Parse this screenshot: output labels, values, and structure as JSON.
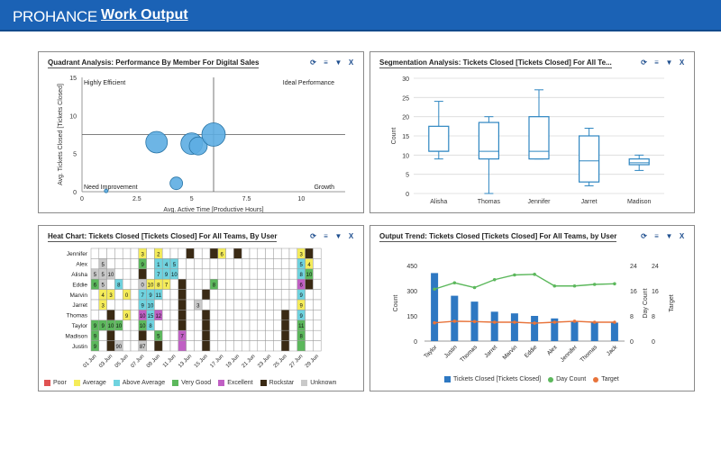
{
  "header": {
    "logo": "PROHANCE",
    "title": "Work Output"
  },
  "colors": {
    "header": "#1b62b5",
    "bubble": "#5dade2",
    "box": "#2e86c1",
    "bar": "#2e78c2",
    "green": "#5cb85c",
    "orange": "#e8733a"
  },
  "panels": {
    "quadrant": {
      "title": "Quadrant Analysis: Performance By Member For Digital Sales"
    },
    "segmentation": {
      "title": "Segmentation Analysis: Tickets Closed [Tickets Closed] For All Te..."
    },
    "heat": {
      "title": "Heat Chart: Tickets Closed [Tickets Closed] For All Teams, By User"
    },
    "trend": {
      "title": "Output Trend: Tickets Closed [Tickets Closed] For All Teams, by User"
    }
  },
  "controls": {
    "refresh": "⟳",
    "menu": "≡",
    "filter": "▼",
    "close": "X"
  },
  "chart_data": [
    {
      "type": "scatter",
      "title": "Quadrant Analysis: Performance By Member For Digital Sales",
      "xlabel": "Avg. Active Time [Productive Hours]",
      "ylabel": "Avg. Tickets Closed [Tickets Closed]",
      "xlim": [
        0,
        12
      ],
      "ylim": [
        0,
        15
      ],
      "xticks": [
        "0",
        "2.5",
        "5",
        "7.5",
        "10"
      ],
      "xtick_values": [
        0,
        2.5,
        5,
        7.5,
        10
      ],
      "yticks": [
        "0",
        "5",
        "10",
        "15"
      ],
      "ytick_values": [
        0,
        5,
        10,
        15
      ],
      "divider": {
        "x": 6,
        "y": 7.5
      },
      "quadrants": {
        "tl": "Highly Efficient",
        "tr": "Ideal Performance",
        "bl": "Need Improvement",
        "br": "Growth"
      },
      "points": [
        {
          "x": 3.4,
          "y": 6.5,
          "size": 12
        },
        {
          "x": 5.0,
          "y": 6.3,
          "size": 12
        },
        {
          "x": 5.3,
          "y": 6.0,
          "size": 10
        },
        {
          "x": 6.0,
          "y": 7.5,
          "size": 13
        },
        {
          "x": 4.3,
          "y": 1.1,
          "size": 7
        },
        {
          "x": 1.1,
          "y": 0.1,
          "size": 2
        }
      ]
    },
    {
      "type": "box",
      "title": "Segmentation Analysis: Tickets Closed [Tickets Closed] For All Te...",
      "ylabel": "Count",
      "ylim": [
        0,
        30
      ],
      "yticks": [
        "0",
        "5",
        "10",
        "15",
        "20",
        "25",
        "30"
      ],
      "ytick_values": [
        0,
        5,
        10,
        15,
        20,
        25,
        30
      ],
      "categories": [
        "Alisha",
        "Thomas",
        "Jennifer",
        "Jarret",
        "Madison"
      ],
      "boxes": [
        {
          "min": 9,
          "q1": 11,
          "median": 11,
          "q3": 17.5,
          "max": 24
        },
        {
          "min": 0,
          "q1": 9,
          "median": 11,
          "q3": 18.5,
          "max": 20
        },
        {
          "min": 9,
          "q1": 9,
          "median": 11,
          "q3": 20,
          "max": 27
        },
        {
          "min": 2,
          "q1": 3,
          "median": 8.5,
          "q3": 15,
          "max": 17
        },
        {
          "min": 6,
          "q1": 7.5,
          "median": 8,
          "q3": 9,
          "max": 10
        }
      ]
    },
    {
      "type": "heatmap",
      "title": "Heat Chart: Tickets Closed [Tickets Closed] For All Teams, By User",
      "rows": [
        "Jennifer",
        "Alex",
        "Alisha",
        "Eddie",
        "Marvin",
        "Jarret",
        "Thomas",
        "Taylor",
        "Madison",
        "Justin"
      ],
      "xticks": [
        "01 Jun",
        "03 Jun",
        "05 Jun",
        "07 Jun",
        "09 Jun",
        "11 Jun",
        "13 Jun",
        "15 Jun",
        "17 Jun",
        "19 Jun",
        "21 Jun",
        "23 Jun",
        "25 Jun",
        "27 Jun",
        "29 Jun"
      ],
      "palette": {
        "Poor": "#e05252",
        "Average": "#f5ec5a",
        "Above Average": "#6fd3df",
        "Very Good": "#5cb85c",
        "Excellent": "#c05fc4",
        "Rockstar": "#3a2a14",
        "Unknown": "#c9c9c9",
        "Empty": "#ffffff"
      },
      "legend": [
        "Poor",
        "Average",
        "Above Average",
        "Very Good",
        "Excellent",
        "Rockstar",
        "Unknown"
      ],
      "cells": [
        [
          ".",
          ".",
          ".",
          ".",
          ".",
          ".",
          "Y:3",
          ".",
          "Y:2",
          ".",
          ".",
          ".",
          "R",
          ".",
          ".",
          "R",
          "Y:6",
          ".",
          "R",
          ".",
          ".",
          ".",
          ".",
          ".",
          ".",
          ".",
          "Y:3",
          "R",
          "."
        ],
        [
          ".",
          "U:5",
          ".",
          ".",
          ".",
          ".",
          "G:9",
          ".",
          "B:1",
          "B:4",
          "B:5",
          ".",
          ".",
          ".",
          ".",
          ".",
          ".",
          ".",
          ".",
          ".",
          ".",
          ".",
          ".",
          ".",
          ".",
          ".",
          "B:5",
          "Y:4",
          "."
        ],
        [
          "U:5",
          "U:5",
          "U:10",
          ".",
          ".",
          ".",
          "R",
          ".",
          "B:7",
          "B:9",
          "B:10",
          ".",
          ".",
          ".",
          ".",
          ".",
          ".",
          ".",
          ".",
          ".",
          ".",
          ".",
          ".",
          ".",
          ".",
          ".",
          "B:8",
          "G:10",
          "."
        ],
        [
          "G:6",
          "U:5",
          ".",
          "B:8",
          ".",
          ".",
          "U:0",
          "Y:10",
          "Y:8",
          "Y:7",
          ".",
          "R",
          ".",
          ".",
          ".",
          "G:8",
          ".",
          ".",
          ".",
          ".",
          ".",
          ".",
          ".",
          ".",
          ".",
          ".",
          "P:6",
          "R",
          "."
        ],
        [
          ".",
          "Y:4",
          "Y:3",
          ".",
          "Y:0",
          ".",
          "B:7",
          "B:9",
          "B:11",
          ".",
          ".",
          "R",
          ".",
          ".",
          "R",
          ".",
          ".",
          ".",
          ".",
          ".",
          ".",
          ".",
          ".",
          ".",
          ".",
          ".",
          "B:9",
          ".",
          "."
        ],
        [
          ".",
          "Y:3",
          ".",
          ".",
          ".",
          ".",
          "B:9",
          "B:10",
          ".",
          ".",
          ".",
          "R",
          ".",
          "U:3",
          ".",
          ".",
          ".",
          ".",
          ".",
          ".",
          ".",
          ".",
          ".",
          ".",
          ".",
          ".",
          "Y:9",
          ".",
          "."
        ],
        [
          ".",
          ".",
          "R",
          ".",
          "Y:9",
          ".",
          "P:10",
          "B:15",
          "P:12",
          ".",
          ".",
          "R",
          ".",
          ".",
          "R",
          ".",
          ".",
          ".",
          ".",
          ".",
          ".",
          ".",
          ".",
          ".",
          "R",
          ".",
          "B:9",
          ".",
          "."
        ],
        [
          "G:9",
          "G:9",
          "G:10",
          "G:10",
          ".",
          ".",
          "G:10",
          "B:8",
          ".",
          ".",
          ".",
          "R",
          ".",
          ".",
          "R",
          ".",
          ".",
          ".",
          ".",
          ".",
          ".",
          ".",
          ".",
          ".",
          "R",
          ".",
          "G:11",
          ".",
          "."
        ],
        [
          "G:9",
          ".",
          "R",
          ".",
          ".",
          ".",
          "R",
          ".",
          "G:5",
          ".",
          ".",
          "P:7",
          ".",
          ".",
          "R",
          ".",
          ".",
          ".",
          ".",
          ".",
          ".",
          ".",
          ".",
          ".",
          "R",
          ".",
          "G:8",
          ".",
          "."
        ],
        [
          "G:9",
          ".",
          "R",
          "U:90",
          ".",
          ".",
          "U:87",
          ".",
          "R",
          ".",
          ".",
          "P",
          ".",
          ".",
          "R",
          ".",
          ".",
          ".",
          ".",
          ".",
          ".",
          ".",
          ".",
          ".",
          "R",
          ".",
          "G",
          ".",
          "."
        ]
      ]
    },
    {
      "type": "bar",
      "title": "Output Trend: Tickets Closed [Tickets Closed] For All Teams, by User",
      "ylabel": "Count",
      "y2label": "Day Count",
      "y3label": "Target",
      "ylim": [
        0,
        450
      ],
      "y2lim": [
        0,
        24
      ],
      "yticks": [
        "0",
        "150",
        "300",
        "450"
      ],
      "ytick_values": [
        0,
        150,
        300,
        450
      ],
      "y2ticks": [
        "0",
        "8",
        "16",
        "24"
      ],
      "y2tick_values": [
        0,
        8,
        16,
        24
      ],
      "categories": [
        "Taylor",
        "Justin",
        "Thomas",
        "Jarret",
        "Marvin",
        "Eddie",
        "Alex",
        "Jennifer",
        "Thomas",
        "Jack"
      ],
      "series": [
        {
          "name": "Tickets Closed [Tickets Closed]",
          "type": "bar",
          "values": [
            405,
            270,
            235,
            175,
            165,
            150,
            135,
            115,
            110,
            110
          ]
        },
        {
          "name": "Day Count",
          "type": "line",
          "values": [
            16.5,
            18.5,
            17,
            19.5,
            21,
            21.2,
            17.5,
            17.5,
            18,
            18.2
          ]
        },
        {
          "name": "Target",
          "type": "line",
          "values": [
            5.8,
            6.3,
            6.2,
            6.0,
            6.0,
            5.7,
            6.0,
            6.3,
            6.0,
            6.0
          ]
        }
      ]
    }
  ]
}
